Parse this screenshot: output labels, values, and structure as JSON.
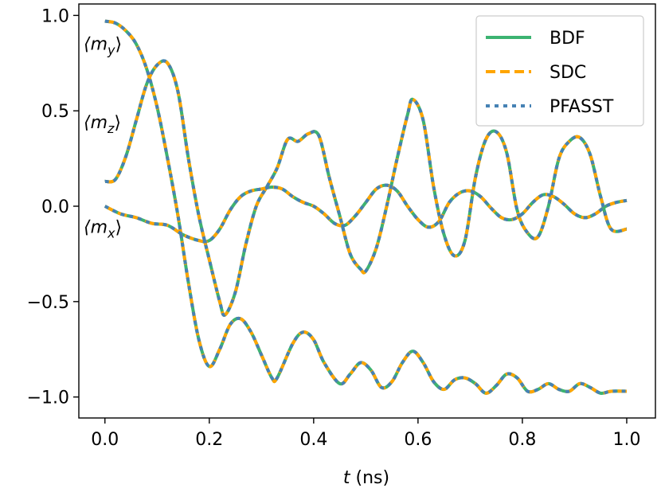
{
  "chart_data": {
    "type": "line",
    "xlabel": "t (ns)",
    "xlabel_parts": [
      "t",
      " (ns)"
    ],
    "ylabel": "",
    "xlim": [
      -0.05,
      1.055
    ],
    "ylim": [
      -1.11,
      1.06
    ],
    "xticks": [
      0.0,
      0.2,
      0.4,
      0.6,
      0.8,
      1.0
    ],
    "xtick_labels": [
      "0.0",
      "0.2",
      "0.4",
      "0.6",
      "0.8",
      "1.0"
    ],
    "yticks": [
      1.0,
      0.5,
      0.0,
      -0.5,
      -1.0
    ],
    "ytick_labels": [
      "1.0",
      "0.5",
      "0.0",
      "−0.5",
      "−1.0"
    ],
    "grid": false,
    "legend_position": "top-right",
    "legend": [
      {
        "label": "BDF",
        "color": "#3cb371",
        "style": "solid"
      },
      {
        "label": "SDC",
        "color": "#ffa500",
        "style": "dashed"
      },
      {
        "label": "PFASST",
        "color": "#4682b4",
        "style": "dotted"
      }
    ],
    "curve_labels": [
      {
        "component": "y",
        "text_main": "⟨m",
        "subscript": "y",
        "text_end": "⟩",
        "anchor_x": 0.0,
        "anchor_y": 0.82
      },
      {
        "component": "z",
        "text_main": "⟨m",
        "subscript": "z",
        "text_end": "⟩",
        "anchor_x": 0.0,
        "anchor_y": 0.41
      },
      {
        "component": "x",
        "text_main": "⟨m",
        "subscript": "x",
        "text_end": "⟩",
        "anchor_x": 0.0,
        "anchor_y": -0.14
      }
    ],
    "series": [
      {
        "component": "y",
        "x": [
          0.0,
          0.02,
          0.04,
          0.06,
          0.08,
          0.1,
          0.12,
          0.14,
          0.16,
          0.18,
          0.2,
          0.22,
          0.24,
          0.26,
          0.28,
          0.3,
          0.32,
          0.33,
          0.36,
          0.38,
          0.4,
          0.42,
          0.45,
          0.47,
          0.49,
          0.51,
          0.53,
          0.55,
          0.57,
          0.59,
          0.61,
          0.63,
          0.65,
          0.67,
          0.69,
          0.71,
          0.73,
          0.75,
          0.77,
          0.79,
          0.81,
          0.83,
          0.85,
          0.87,
          0.89,
          0.91,
          0.93,
          0.95,
          0.97,
          1.0
        ],
        "y": [
          0.97,
          0.96,
          0.92,
          0.85,
          0.72,
          0.52,
          0.25,
          -0.05,
          -0.4,
          -0.7,
          -0.84,
          -0.75,
          -0.62,
          -0.59,
          -0.66,
          -0.78,
          -0.9,
          -0.9,
          -0.72,
          -0.66,
          -0.7,
          -0.82,
          -0.93,
          -0.88,
          -0.82,
          -0.86,
          -0.95,
          -0.92,
          -0.82,
          -0.76,
          -0.82,
          -0.92,
          -0.96,
          -0.91,
          -0.9,
          -0.93,
          -0.98,
          -0.94,
          -0.88,
          -0.9,
          -0.97,
          -0.96,
          -0.93,
          -0.96,
          -0.97,
          -0.93,
          -0.95,
          -0.98,
          -0.97,
          -0.97
        ]
      },
      {
        "component": "z",
        "x": [
          0.0,
          0.02,
          0.04,
          0.06,
          0.08,
          0.1,
          0.12,
          0.14,
          0.16,
          0.18,
          0.2,
          0.22,
          0.23,
          0.25,
          0.27,
          0.29,
          0.31,
          0.33,
          0.35,
          0.37,
          0.39,
          0.41,
          0.43,
          0.45,
          0.47,
          0.49,
          0.5,
          0.52,
          0.54,
          0.56,
          0.58,
          0.59,
          0.61,
          0.63,
          0.65,
          0.67,
          0.69,
          0.71,
          0.73,
          0.75,
          0.77,
          0.79,
          0.81,
          0.83,
          0.85,
          0.87,
          0.89,
          0.91,
          0.93,
          0.95,
          0.97,
          1.0
        ],
        "y": [
          0.13,
          0.14,
          0.26,
          0.45,
          0.64,
          0.74,
          0.75,
          0.6,
          0.25,
          -0.05,
          -0.28,
          -0.5,
          -0.57,
          -0.45,
          -0.2,
          0.0,
          0.1,
          0.2,
          0.35,
          0.34,
          0.38,
          0.37,
          0.15,
          -0.05,
          -0.25,
          -0.33,
          -0.34,
          -0.22,
          0.0,
          0.25,
          0.48,
          0.56,
          0.45,
          0.1,
          -0.15,
          -0.26,
          -0.18,
          0.15,
          0.35,
          0.39,
          0.28,
          -0.02,
          -0.14,
          -0.16,
          0.0,
          0.25,
          0.34,
          0.36,
          0.27,
          0.05,
          -0.12,
          -0.12
        ]
      },
      {
        "component": "x",
        "x": [
          0.0,
          0.03,
          0.06,
          0.09,
          0.12,
          0.15,
          0.18,
          0.2,
          0.22,
          0.24,
          0.26,
          0.28,
          0.3,
          0.32,
          0.34,
          0.36,
          0.38,
          0.4,
          0.42,
          0.44,
          0.46,
          0.48,
          0.5,
          0.52,
          0.54,
          0.56,
          0.58,
          0.6,
          0.62,
          0.64,
          0.66,
          0.68,
          0.7,
          0.72,
          0.74,
          0.76,
          0.78,
          0.8,
          0.82,
          0.84,
          0.86,
          0.88,
          0.9,
          0.92,
          0.94,
          0.96,
          0.98,
          1.0
        ],
        "y": [
          0.0,
          -0.04,
          -0.06,
          -0.09,
          -0.1,
          -0.15,
          -0.18,
          -0.18,
          -0.12,
          -0.02,
          0.05,
          0.08,
          0.09,
          0.1,
          0.09,
          0.05,
          0.02,
          0.0,
          -0.04,
          -0.09,
          -0.1,
          -0.05,
          0.02,
          0.09,
          0.11,
          0.08,
          0.0,
          -0.07,
          -0.11,
          -0.08,
          0.02,
          0.07,
          0.08,
          0.05,
          -0.01,
          -0.06,
          -0.07,
          -0.04,
          0.02,
          0.06,
          0.05,
          0.01,
          -0.04,
          -0.06,
          -0.04,
          0.0,
          0.02,
          0.03
        ]
      }
    ]
  }
}
